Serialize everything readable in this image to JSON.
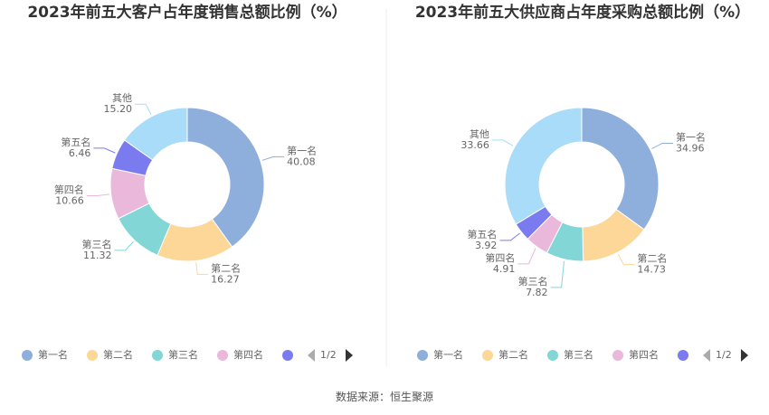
{
  "chart_data": [
    {
      "type": "pie",
      "title": "2023年前五大客户占年度销售总额比例（%）",
      "categories": [
        "第一名",
        "第二名",
        "第三名",
        "第四名",
        "第五名",
        "其他"
      ],
      "values": [
        40.08,
        16.27,
        11.32,
        10.66,
        6.46,
        15.2
      ],
      "value_labels": [
        "40.08",
        "16.27",
        "11.32",
        "10.66",
        "6.46",
        "15.20"
      ],
      "colors": [
        "#8eaedc",
        "#fdd797",
        "#83d6d6",
        "#e9b8da",
        "#7b7bf0",
        "#a8dcf8"
      ],
      "legend_page": "1/2"
    },
    {
      "type": "pie",
      "title": "2023年前五大供应商占年度采购总额比例（%）",
      "categories": [
        "第一名",
        "第二名",
        "第三名",
        "第四名",
        "第五名",
        "其他"
      ],
      "values": [
        34.96,
        14.73,
        7.82,
        4.91,
        3.92,
        33.66
      ],
      "value_labels": [
        "34.96",
        "14.73",
        "7.82",
        "4.91",
        "3.92",
        "33.66"
      ],
      "colors": [
        "#8eaedc",
        "#fdd797",
        "#83d6d6",
        "#e9b8da",
        "#7b7bf0",
        "#a8dcf8"
      ],
      "legend_page": "1/2"
    }
  ],
  "source": "数据来源：恒生聚源"
}
